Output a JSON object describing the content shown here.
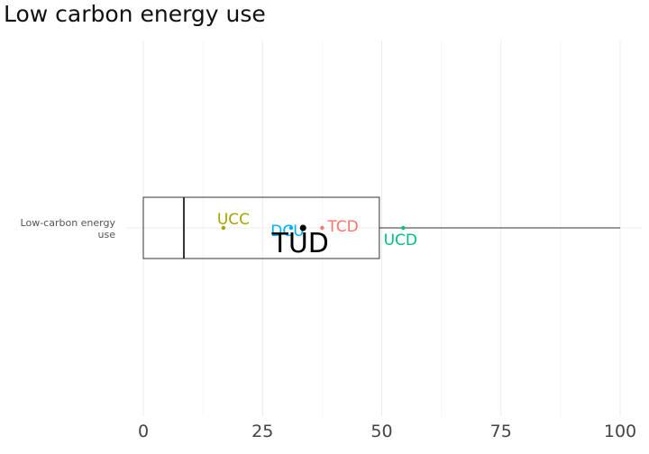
{
  "chart_data": {
    "type": "boxplot",
    "title": "Low carbon energy use",
    "xlabel": "",
    "ylabel": "",
    "orientation": "horizontal",
    "category_label_lines": [
      "Low-carbon energy",
      "use"
    ],
    "xlim": [
      0,
      100
    ],
    "x_ticks": [
      0,
      25,
      50,
      75,
      100
    ],
    "grid": true,
    "box": {
      "min": 0,
      "q1": 0,
      "median": 8.5,
      "q3": 49.5,
      "max": 100
    },
    "points": [
      {
        "label": "UCC",
        "value": 16.8,
        "color": "#a3a500",
        "highlight": false
      },
      {
        "label": "DCU",
        "value": 31.0,
        "color": "#00b0f6",
        "highlight": false
      },
      {
        "label": "TUD",
        "value": 33.5,
        "color": "#000000",
        "highlight": true
      },
      {
        "label": "TCD",
        "value": 37.5,
        "color": "#f8766d",
        "highlight": false
      },
      {
        "label": "UCD",
        "value": 54.5,
        "color": "#00bf7d",
        "highlight": false
      }
    ]
  }
}
